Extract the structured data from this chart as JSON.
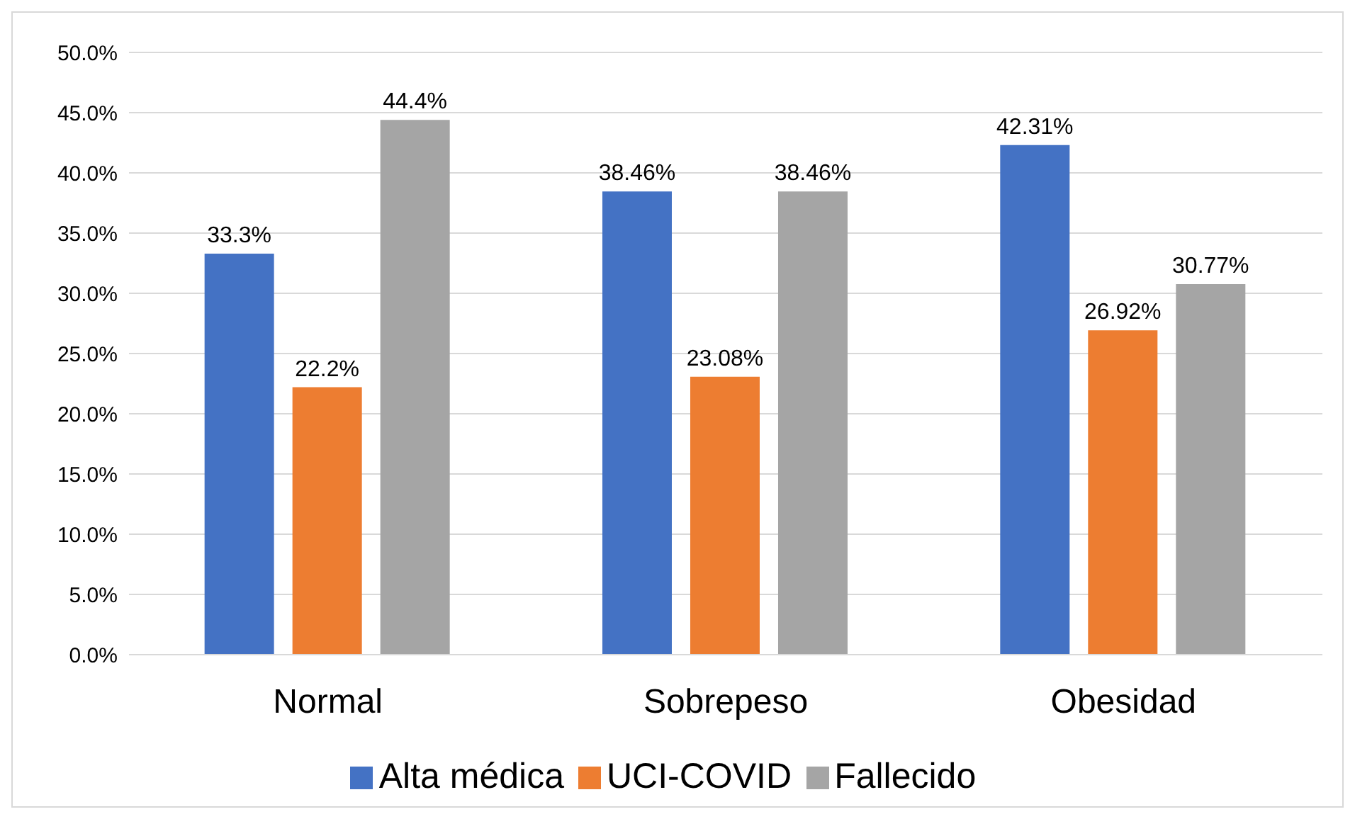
{
  "chart_data": {
    "type": "bar",
    "categories": [
      "Normal",
      "Sobrepeso",
      "Obesidad"
    ],
    "series": [
      {
        "name": "Alta médica",
        "color": "#4472c4",
        "values": [
          33.3,
          38.46,
          42.31
        ],
        "value_labels": [
          "33.3%",
          "38.46%",
          "42.31%"
        ]
      },
      {
        "name": "UCI-COVID",
        "color": "#ed7d31",
        "values": [
          22.2,
          23.08,
          26.92
        ],
        "value_labels": [
          "22.2%",
          "23.08%",
          "26.92%"
        ]
      },
      {
        "name": "Fallecido",
        "color": "#a5a5a5",
        "values": [
          44.4,
          38.46,
          30.77
        ],
        "value_labels": [
          "44.4%",
          "38.46%",
          "30.77%"
        ]
      }
    ],
    "ylim": [
      0,
      50
    ],
    "yticks": [
      {
        "value": 0,
        "label": "0.0%"
      },
      {
        "value": 5,
        "label": "5.0%"
      },
      {
        "value": 10,
        "label": "10.0%"
      },
      {
        "value": 15,
        "label": "15.0%"
      },
      {
        "value": 20,
        "label": "20.0%"
      },
      {
        "value": 25,
        "label": "25.0%"
      },
      {
        "value": 30,
        "label": "30.0%"
      },
      {
        "value": 35,
        "label": "35.0%"
      },
      {
        "value": 40,
        "label": "40.0%"
      },
      {
        "value": 45,
        "label": "45.0%"
      },
      {
        "value": 50,
        "label": "50.0%"
      }
    ],
    "grid": "y",
    "legend": "bottom"
  }
}
